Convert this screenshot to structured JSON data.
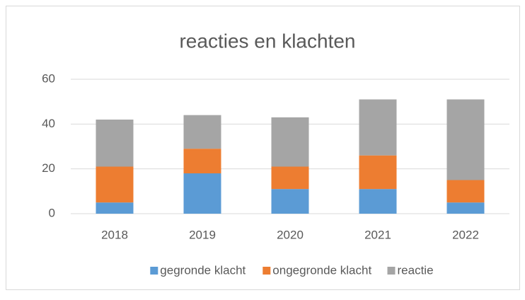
{
  "chart_data": {
    "type": "stacked_bar",
    "title": "reacties en klachten",
    "categories": [
      "2018",
      "2019",
      "2020",
      "2021",
      "2022"
    ],
    "series": [
      {
        "name": "gegronde klacht",
        "color": "#5b9bd5",
        "values": [
          5,
          18,
          11,
          11,
          5
        ]
      },
      {
        "name": "ongegronde klacht",
        "color": "#ed7d31",
        "values": [
          16,
          11,
          10,
          15,
          10
        ]
      },
      {
        "name": "reactie",
        "color": "#a5a5a5",
        "values": [
          21,
          15,
          22,
          25,
          36
        ]
      }
    ],
    "ylim": [
      0,
      60
    ],
    "yticks": [
      0,
      20,
      40,
      60
    ],
    "grid": true,
    "legend": "bottom"
  }
}
